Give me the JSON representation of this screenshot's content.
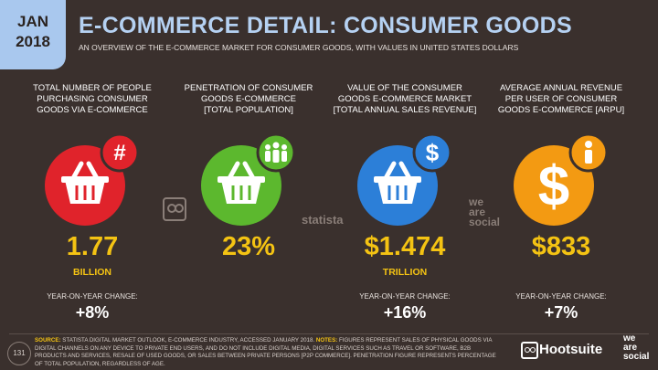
{
  "date_badge": {
    "month": "JAN",
    "year": "2018"
  },
  "title": "E-COMMERCE DETAIL: CONSUMER GOODS",
  "subtitle": "AN OVERVIEW OF THE E-COMMERCE MARKET FOR CONSUMER GOODS, WITH VALUES IN UNITED STATES DOLLARS",
  "metrics": [
    {
      "heading_1": "TOTAL NUMBER OF PEOPLE",
      "heading_2": "PURCHASING CONSUMER",
      "heading_3": "GOODS VIA E-COMMERCE",
      "value": "1.77",
      "unit": "BILLION",
      "yoy_label": "YEAR-ON-YEAR CHANGE:",
      "yoy_value": "+8%",
      "color": "#e0232b",
      "icon": "basket-icon",
      "badge_glyph": "#"
    },
    {
      "heading_1": "PENETRATION OF CONSUMER",
      "heading_2": "GOODS E-COMMERCE",
      "heading_3": "[TOTAL POPULATION]",
      "value": "23%",
      "unit": "",
      "yoy_label": "",
      "yoy_value": "",
      "color": "#5cb82e",
      "icon": "basket-icon",
      "badge_glyph": "people"
    },
    {
      "heading_1": "VALUE OF THE CONSUMER",
      "heading_2": "GOODS E-COMMERCE MARKET",
      "heading_3": "[TOTAL ANNUAL SALES REVENUE]",
      "value": "$1.474",
      "unit": "TRILLION",
      "yoy_label": "YEAR-ON-YEAR CHANGE:",
      "yoy_value": "+16%",
      "color": "#2c7fd8",
      "icon": "basket-icon",
      "badge_glyph": "$"
    },
    {
      "heading_1": "AVERAGE ANNUAL REVENUE",
      "heading_2": "PER USER OF CONSUMER",
      "heading_3": "GOODS E-COMMERCE [ARPU]",
      "value": "$833",
      "unit": "",
      "yoy_label": "YEAR-ON-YEAR CHANGE:",
      "yoy_value": "+7%",
      "color": "#f39a12",
      "icon": "dollar-icon",
      "badge_glyph": "person"
    }
  ],
  "watermarks": {
    "statista": "statista",
    "wearesocial_1": "we",
    "wearesocial_2": "are",
    "wearesocial_3": "social"
  },
  "footer": {
    "page_number": "131",
    "source_label": "SOURCE:",
    "source_text": "STATISTA DIGITAL MARKET OUTLOOK, E-COMMERCE INDUSTRY, ACCESSED JANUARY 2018.",
    "notes_label": "NOTES:",
    "notes_text": "FIGURES REPRESENT SALES OF PHYSICAL GOODS VIA DIGITAL CHANNELS ON ANY DEVICE TO PRIVATE END USERS, AND DO NOT INCLUDE DIGITAL MEDIA, DIGITAL SERVICES SUCH AS TRAVEL OR SOFTWARE, B2B PRODUCTS AND SERVICES, RESALE OF USED GOODS, OR SALES BETWEEN PRIVATE PERSONS [P2P COMMERCE]. PENETRATION FIGURE REPRESENTS PERCENTAGE OF TOTAL POPULATION, REGARDLESS OF AGE.",
    "brand_hootsuite": "Hootsuite",
    "brand_was_1": "we",
    "brand_was_2": "are",
    "brand_was_3": "social"
  }
}
